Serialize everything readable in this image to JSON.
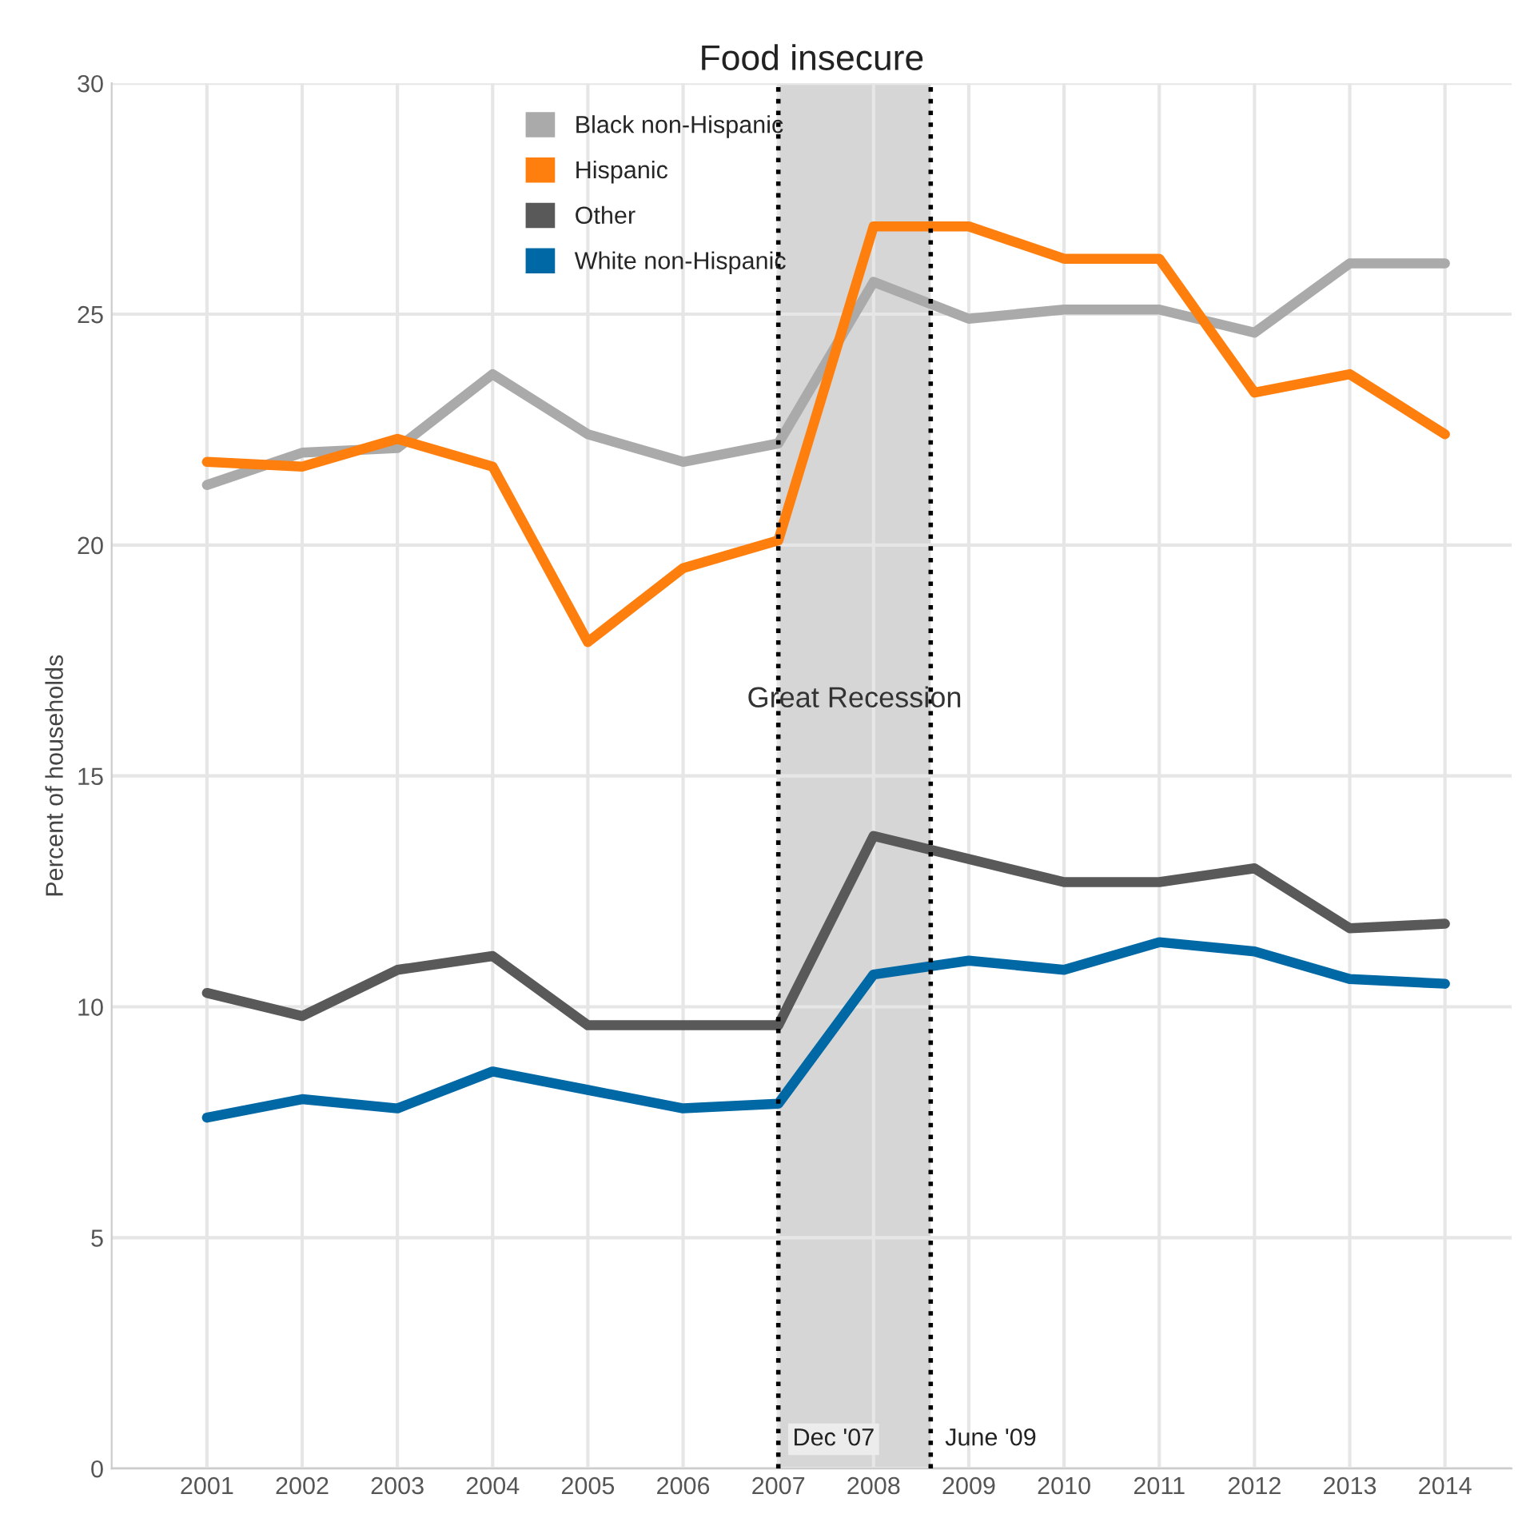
{
  "chart_data": {
    "type": "line",
    "title": "Food insecure",
    "ylabel": "Percent of households",
    "x": [
      2001,
      2002,
      2003,
      2004,
      2005,
      2006,
      2007,
      2008,
      2009,
      2010,
      2011,
      2012,
      2013,
      2014
    ],
    "series": [
      {
        "name": "Black non-Hispanic",
        "color": "#aaaaaa",
        "values": [
          21.3,
          22.0,
          22.1,
          23.7,
          22.4,
          21.8,
          22.2,
          25.7,
          24.9,
          25.1,
          25.1,
          24.6,
          26.1,
          26.1
        ]
      },
      {
        "name": "Hispanic",
        "color": "#ff7f0e",
        "values": [
          21.8,
          21.7,
          22.3,
          21.7,
          17.9,
          19.5,
          20.1,
          26.9,
          26.9,
          26.2,
          26.2,
          23.3,
          23.7,
          22.4
        ]
      },
      {
        "name": "Other",
        "color": "#595959",
        "values": [
          10.3,
          9.8,
          10.8,
          11.1,
          9.6,
          9.6,
          9.6,
          13.7,
          13.2,
          12.7,
          12.7,
          13.0,
          11.7,
          11.8
        ]
      },
      {
        "name": "White non-Hispanic",
        "color": "#0068a5",
        "values": [
          7.6,
          8.0,
          7.8,
          8.6,
          8.2,
          7.8,
          7.9,
          10.7,
          11.0,
          10.8,
          11.4,
          11.2,
          10.6,
          10.5
        ]
      }
    ],
    "xlim": [
      2000,
      2014.7
    ],
    "xticks": [
      2001,
      2002,
      2003,
      2004,
      2005,
      2006,
      2007,
      2008,
      2009,
      2010,
      2011,
      2012,
      2013,
      2014
    ],
    "ylim": [
      0,
      30
    ],
    "yticks": [
      0,
      5,
      10,
      15,
      20,
      25,
      30
    ],
    "bands": [
      {
        "axis": "x",
        "from": 2007,
        "to": 2008.6,
        "label": "Great Recession",
        "color": "#d6d6d6"
      }
    ],
    "ref_lines": [
      {
        "axis": "x",
        "value": 2007,
        "label": "Dec '07",
        "color": "#000000",
        "line_style": "dotted"
      },
      {
        "axis": "x",
        "value": 2008.6,
        "label": "June '09",
        "color": "#000000",
        "line_style": "dotted"
      }
    ],
    "grid": true,
    "legend": "top left",
    "marker": "none",
    "line_style": "solid"
  }
}
